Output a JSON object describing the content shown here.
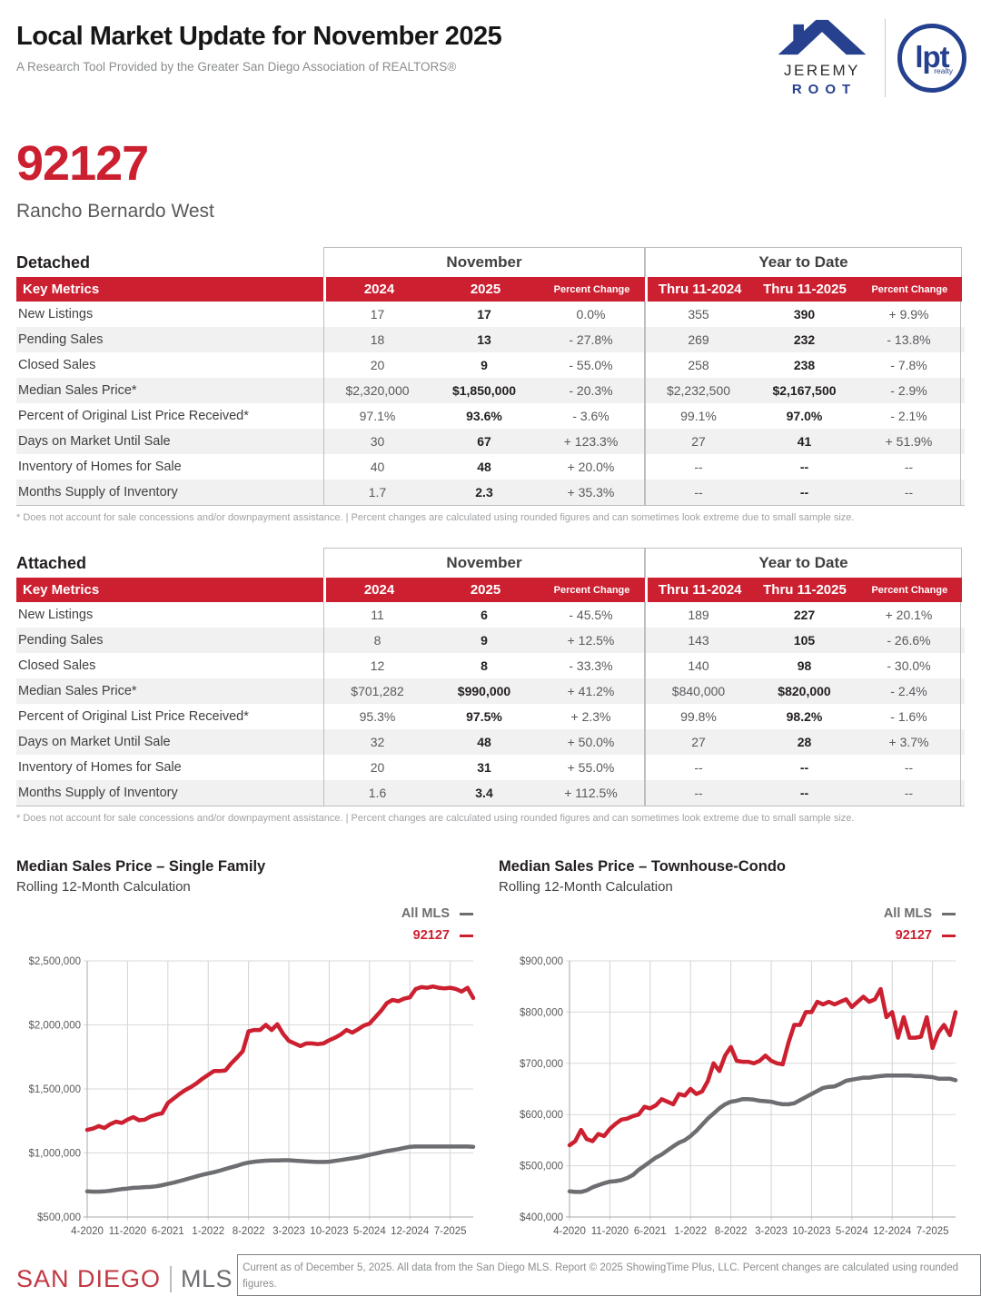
{
  "header": {
    "title": "Local Market Update for November 2025",
    "subtitle": "A Research Tool Provided by the Greater San Diego Association of REALTORS®",
    "agent_logo": {
      "line1": "JEREMY",
      "line2": "ROOT"
    },
    "brokerage_logo": {
      "main": "lpt",
      "sub": "realty"
    }
  },
  "area": {
    "zip": "92127",
    "name": "Rancho Bernardo West"
  },
  "colors": {
    "accent_red": "#cc2031",
    "all_mls_gray": "#6d6e71",
    "table_border": "#bcbec0",
    "alt_row": "#f1f1f2"
  },
  "tables": [
    {
      "section_label": "Detached",
      "november_label": "November",
      "ytd_label": "Year to Date",
      "header": {
        "key_metrics": "Key Metrics",
        "nov_2024": "2024",
        "nov_2025": "2025",
        "nov_pct": "Percent Change",
        "ytd_2024": "Thru 11-2024",
        "ytd_2025": "Thru 11-2025",
        "ytd_pct": "Percent Change"
      },
      "rows": [
        [
          "New Listings",
          "17",
          "17",
          "0.0%",
          "355",
          "390",
          "+ 9.9%"
        ],
        [
          "Pending Sales",
          "18",
          "13",
          "- 27.8%",
          "269",
          "232",
          "- 13.8%"
        ],
        [
          "Closed Sales",
          "20",
          "9",
          "- 55.0%",
          "258",
          "238",
          "- 7.8%"
        ],
        [
          "Median Sales Price*",
          "$2,320,000",
          "$1,850,000",
          "- 20.3%",
          "$2,232,500",
          "$2,167,500",
          "- 2.9%"
        ],
        [
          "Percent of Original List Price Received*",
          "97.1%",
          "93.6%",
          "- 3.6%",
          "99.1%",
          "97.0%",
          "- 2.1%"
        ],
        [
          "Days on Market Until Sale",
          "30",
          "67",
          "+ 123.3%",
          "27",
          "41",
          "+ 51.9%"
        ],
        [
          "Inventory of Homes for Sale",
          "40",
          "48",
          "+ 20.0%",
          "--",
          "--",
          "--"
        ],
        [
          "Months Supply of Inventory",
          "1.7",
          "2.3",
          "+ 35.3%",
          "--",
          "--",
          "--"
        ]
      ],
      "footnote": "* Does not account for sale concessions and/or downpayment assistance.  |  Percent changes are calculated using rounded figures and can sometimes look extreme due to small sample size."
    },
    {
      "section_label": "Attached",
      "november_label": "November",
      "ytd_label": "Year to Date",
      "header": {
        "key_metrics": "Key Metrics",
        "nov_2024": "2024",
        "nov_2025": "2025",
        "nov_pct": "Percent Change",
        "ytd_2024": "Thru 11-2024",
        "ytd_2025": "Thru 11-2025",
        "ytd_pct": "Percent Change"
      },
      "rows": [
        [
          "New Listings",
          "11",
          "6",
          "- 45.5%",
          "189",
          "227",
          "+ 20.1%"
        ],
        [
          "Pending Sales",
          "8",
          "9",
          "+ 12.5%",
          "143",
          "105",
          "- 26.6%"
        ],
        [
          "Closed Sales",
          "12",
          "8",
          "- 33.3%",
          "140",
          "98",
          "- 30.0%"
        ],
        [
          "Median Sales Price*",
          "$701,282",
          "$990,000",
          "+ 41.2%",
          "$840,000",
          "$820,000",
          "- 2.4%"
        ],
        [
          "Percent of Original List Price Received*",
          "95.3%",
          "97.5%",
          "+ 2.3%",
          "99.8%",
          "98.2%",
          "- 1.6%"
        ],
        [
          "Days on Market Until Sale",
          "32",
          "48",
          "+ 50.0%",
          "27",
          "28",
          "+ 3.7%"
        ],
        [
          "Inventory of Homes for Sale",
          "20",
          "31",
          "+ 55.0%",
          "--",
          "--",
          "--"
        ],
        [
          "Months Supply of Inventory",
          "1.6",
          "3.4",
          "+ 112.5%",
          "--",
          "--",
          "--"
        ]
      ],
      "footnote": "* Does not account for sale concessions and/or downpayment assistance.  |  Percent changes are calculated using rounded figures and can sometimes look extreme due to small sample size."
    }
  ],
  "chart_data": [
    {
      "type": "line",
      "title": "Median Sales Price – Single Family",
      "subtitle": "Rolling 12-Month Calculation",
      "legend": [
        {
          "name": "All MLS",
          "color": "#6d6e71"
        },
        {
          "name": "92127",
          "color": "#cc2031"
        }
      ],
      "legend_position": "top-right",
      "grid": true,
      "ylim": [
        500000,
        2500000
      ],
      "y_tick_step": 500000,
      "x_start": "4-2020",
      "x_end": "11-2025",
      "x_interval": "monthly",
      "x_tick_labels": [
        "4-2020",
        "11-2020",
        "6-2021",
        "1-2022",
        "8-2022",
        "3-2023",
        "10-2023",
        "5-2024",
        "12-2024",
        "7-2025"
      ],
      "x_tick_indices": [
        0,
        7,
        14,
        21,
        28,
        35,
        42,
        49,
        56,
        63
      ],
      "series": [
        {
          "name": "All MLS",
          "color": "#6d6e71",
          "values": [
            700000,
            698000,
            698000,
            700000,
            705000,
            712000,
            718000,
            722000,
            728000,
            730000,
            733000,
            735000,
            740000,
            748000,
            758000,
            768000,
            780000,
            792000,
            805000,
            818000,
            830000,
            840000,
            850000,
            862000,
            875000,
            888000,
            900000,
            915000,
            925000,
            932000,
            936000,
            940000,
            941000,
            942000,
            943000,
            943000,
            940000,
            937000,
            934000,
            932000,
            930000,
            930000,
            932000,
            938000,
            945000,
            952000,
            958000,
            965000,
            975000,
            985000,
            995000,
            1005000,
            1015000,
            1022000,
            1030000,
            1040000,
            1048000,
            1050000,
            1050000,
            1050000,
            1050000,
            1050000,
            1050000,
            1050000,
            1050000,
            1050000,
            1050000,
            1048000
          ]
        },
        {
          "name": "92127",
          "color": "#cc2031",
          "values": [
            1180000,
            1190000,
            1210000,
            1195000,
            1225000,
            1245000,
            1235000,
            1260000,
            1280000,
            1255000,
            1260000,
            1285000,
            1300000,
            1310000,
            1390000,
            1425000,
            1460000,
            1490000,
            1515000,
            1545000,
            1580000,
            1610000,
            1640000,
            1640000,
            1645000,
            1700000,
            1745000,
            1795000,
            1950000,
            1960000,
            1960000,
            2000000,
            1960000,
            2005000,
            1930000,
            1875000,
            1855000,
            1835000,
            1855000,
            1855000,
            1850000,
            1855000,
            1880000,
            1900000,
            1925000,
            1960000,
            1940000,
            1965000,
            1995000,
            2010000,
            2060000,
            2110000,
            2170000,
            2195000,
            2185000,
            2205000,
            2215000,
            2280000,
            2295000,
            2290000,
            2300000,
            2290000,
            2285000,
            2290000,
            2280000,
            2260000,
            2290000,
            2210000
          ]
        }
      ]
    },
    {
      "type": "line",
      "title": "Median Sales Price – Townhouse-Condo",
      "subtitle": "Rolling 12-Month Calculation",
      "legend": [
        {
          "name": "All MLS",
          "color": "#6d6e71"
        },
        {
          "name": "92127",
          "color": "#cc2031"
        }
      ],
      "legend_position": "top-right",
      "grid": true,
      "ylim": [
        400000,
        900000
      ],
      "y_tick_step": 100000,
      "x_start": "4-2020",
      "x_end": "11-2025",
      "x_interval": "monthly",
      "x_tick_labels": [
        "4-2020",
        "11-2020",
        "6-2021",
        "1-2022",
        "8-2022",
        "3-2023",
        "10-2023",
        "5-2024",
        "12-2024",
        "7-2025"
      ],
      "x_tick_indices": [
        0,
        7,
        14,
        21,
        28,
        35,
        42,
        49,
        56,
        63
      ],
      "series": [
        {
          "name": "All MLS",
          "color": "#6d6e71",
          "values": [
            450000,
            449000,
            449000,
            452000,
            458000,
            462000,
            466000,
            469000,
            470000,
            472000,
            476000,
            482000,
            492000,
            500000,
            508000,
            516000,
            522000,
            530000,
            538000,
            545000,
            550000,
            558000,
            568000,
            580000,
            592000,
            602000,
            612000,
            620000,
            625000,
            627000,
            630000,
            630000,
            629000,
            627000,
            626000,
            625000,
            622000,
            620000,
            620000,
            622000,
            628000,
            634000,
            640000,
            646000,
            652000,
            654000,
            655000,
            660000,
            666000,
            668000,
            670000,
            672000,
            672000,
            674000,
            675000,
            676000,
            676000,
            676000,
            676000,
            676000,
            675000,
            675000,
            674000,
            673000,
            670000,
            670000,
            670000,
            667000
          ]
        },
        {
          "name": "92127",
          "color": "#cc2031",
          "values": [
            540000,
            548000,
            570000,
            552000,
            548000,
            562000,
            558000,
            572000,
            582000,
            590000,
            592000,
            597000,
            600000,
            615000,
            612000,
            618000,
            630000,
            625000,
            620000,
            640000,
            637000,
            650000,
            640000,
            645000,
            665000,
            700000,
            685000,
            715000,
            732000,
            705000,
            703000,
            703000,
            700000,
            705000,
            715000,
            705000,
            700000,
            698000,
            740000,
            775000,
            775000,
            800000,
            800000,
            820000,
            815000,
            820000,
            815000,
            820000,
            825000,
            810000,
            820000,
            830000,
            820000,
            825000,
            845000,
            790000,
            800000,
            750000,
            790000,
            750000,
            750000,
            752000,
            790000,
            730000,
            760000,
            775000,
            755000,
            800000
          ]
        }
      ]
    }
  ],
  "footer": {
    "logo_part1": "SAN DIEGO",
    "logo_part2": "MLS",
    "fine_print": "Current as of December 5, 2025. All data from the San Diego MLS. Report © 2025 ShowingTime Plus, LLC. Percent changes are calculated using rounded figures."
  }
}
